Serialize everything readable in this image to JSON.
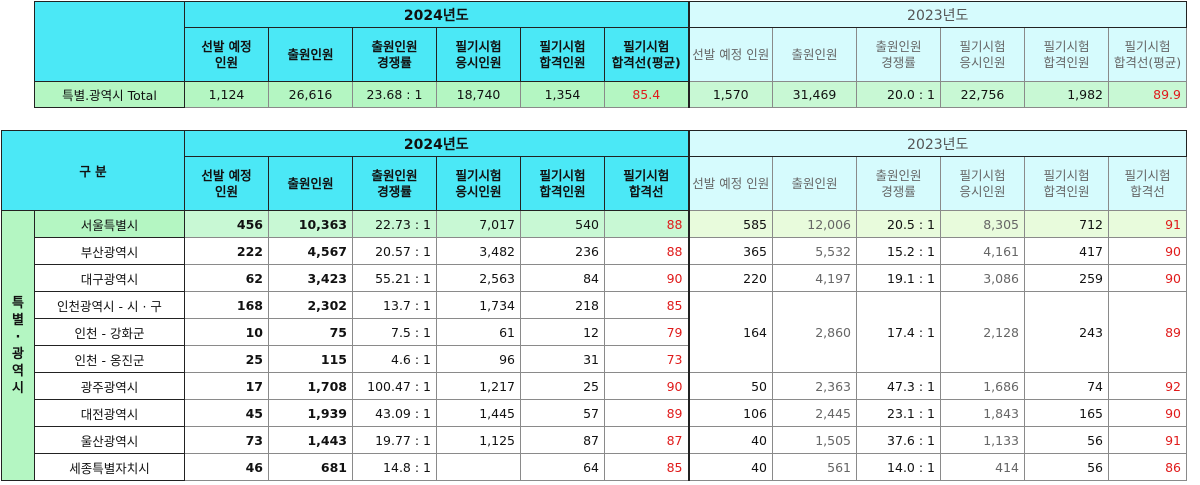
{
  "summary": {
    "year_2024": "2024년도",
    "year_2023": "2023년도",
    "headers_2024": [
      "선발 예정\n인원",
      "출원인원",
      "출원인원\n경쟁률",
      "필기시험\n응시인원",
      "필기시험\n합격인원",
      "필기시험\n합격선(평균)"
    ],
    "headers_2023": [
      "선발 예정 인원",
      "출원인원",
      "출원인원\n경쟁률",
      "필기시험\n응시인원",
      "필기시험\n합격인원",
      "필기시험\n합격선(평균)"
    ],
    "total": {
      "label": "특별.광역시 Total",
      "y2024": [
        "1,124",
        "26,616",
        "23.68 : 1",
        "18,740",
        "1,354",
        "85.4"
      ],
      "y2023": [
        "1,570",
        "31,469",
        "20.0 : 1",
        "22,756",
        "1,982",
        "89.9"
      ]
    }
  },
  "detail": {
    "corner_label": "구      분",
    "year_2024": "2024년도",
    "year_2023": "2023년도",
    "headers_2024": [
      "선발 예정\n인원",
      "출원인원",
      "출원인원\n경쟁률",
      "필기시험\n응시인원",
      "필기시험\n합격인원",
      "필기시험\n합격선"
    ],
    "headers_2023": [
      "선발 예정 인원",
      "출원인원",
      "출원인원\n경쟁률",
      "필기시험\n응시인원",
      "필기시험\n합격인원",
      "필기시험\n합격선"
    ],
    "group_label": "특\n별\n·\n광\n역\n시",
    "rows": [
      {
        "region": "서울특별시",
        "y2024": [
          "456",
          "10,363",
          "22.73 : 1",
          "7,017",
          "540",
          "88"
        ],
        "y2023": [
          "585",
          "12,006",
          "20.5 : 1",
          "8,305",
          "712",
          "91"
        ]
      },
      {
        "region": "부산광역시",
        "y2024": [
          "222",
          "4,567",
          "20.57 : 1",
          "3,482",
          "236",
          "88"
        ],
        "y2023": [
          "365",
          "5,532",
          "15.2 : 1",
          "4,161",
          "417",
          "90"
        ]
      },
      {
        "region": "대구광역시",
        "y2024": [
          "62",
          "3,423",
          "55.21 : 1",
          "2,563",
          "84",
          "90"
        ],
        "y2023": [
          "220",
          "4,197",
          "19.1 : 1",
          "3,086",
          "259",
          "90"
        ]
      },
      {
        "region": "인천광역시 - 시 · 구",
        "y2024": [
          "168",
          "2,302",
          "13.7 : 1",
          "1,734",
          "218",
          "85"
        ]
      },
      {
        "region": "인천 - 강화군",
        "y2024": [
          "10",
          "75",
          "7.5 : 1",
          "61",
          "12",
          "79"
        ]
      },
      {
        "region": "인천 - 옹진군",
        "y2024": [
          "25",
          "115",
          "4.6 : 1",
          "96",
          "31",
          "73"
        ]
      },
      {
        "region": "광주광역시",
        "y2024": [
          "17",
          "1,708",
          "100.47 : 1",
          "1,217",
          "25",
          "90"
        ],
        "y2023": [
          "50",
          "2,363",
          "47.3 : 1",
          "1,686",
          "74",
          "92"
        ]
      },
      {
        "region": "대전광역시",
        "y2024": [
          "45",
          "1,939",
          "43.09 : 1",
          "1,445",
          "57",
          "89"
        ],
        "y2023": [
          "106",
          "2,445",
          "23.1 : 1",
          "1,843",
          "165",
          "90"
        ]
      },
      {
        "region": "울산광역시",
        "y2024": [
          "73",
          "1,443",
          "19.77 : 1",
          "1,125",
          "87",
          "87"
        ],
        "y2023": [
          "40",
          "1,505",
          "37.6 : 1",
          "1,133",
          "56",
          "91"
        ]
      },
      {
        "region": "세종특별자치시",
        "y2024": [
          "46",
          "681",
          "14.8 : 1",
          "",
          "64",
          "85"
        ],
        "y2023": [
          "40",
          "561",
          "14.0 : 1",
          "414",
          "56",
          "86"
        ]
      }
    ],
    "incheon_2023": [
      "164",
      "2,860",
      "17.4 : 1",
      "2,128",
      "243",
      "89"
    ]
  }
}
